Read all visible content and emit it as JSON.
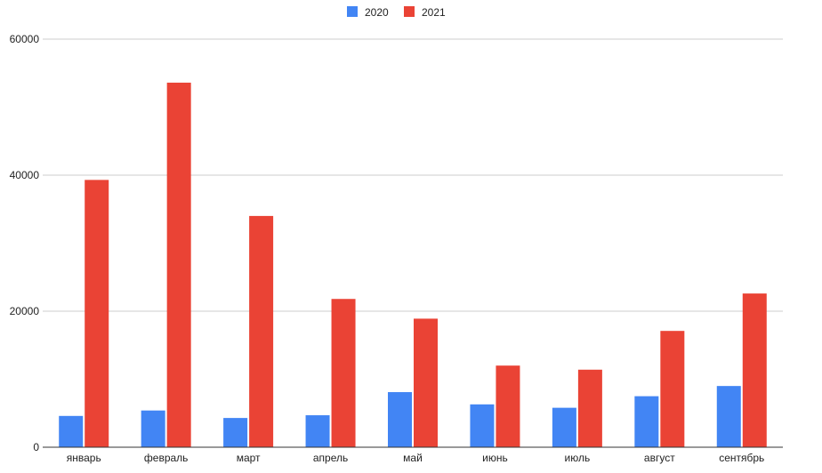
{
  "chart_data": {
    "type": "bar",
    "categories": [
      "январь",
      "февраль",
      "март",
      "апрель",
      "май",
      "июнь",
      "июль",
      "август",
      "сентябрь"
    ],
    "series": [
      {
        "name": "2020",
        "color": "#4285f4",
        "values": [
          4600,
          5400,
          4300,
          4700,
          8100,
          6300,
          5800,
          7500,
          9000
        ]
      },
      {
        "name": "2021",
        "color": "#ea4335",
        "values": [
          39300,
          53600,
          34000,
          21800,
          18900,
          12000,
          11400,
          17100,
          22600
        ]
      }
    ],
    "ylim": [
      0,
      60000
    ],
    "yticks": [
      "0",
      "20000",
      "40000",
      "60000"
    ],
    "grid": true,
    "legend_position": "top"
  }
}
